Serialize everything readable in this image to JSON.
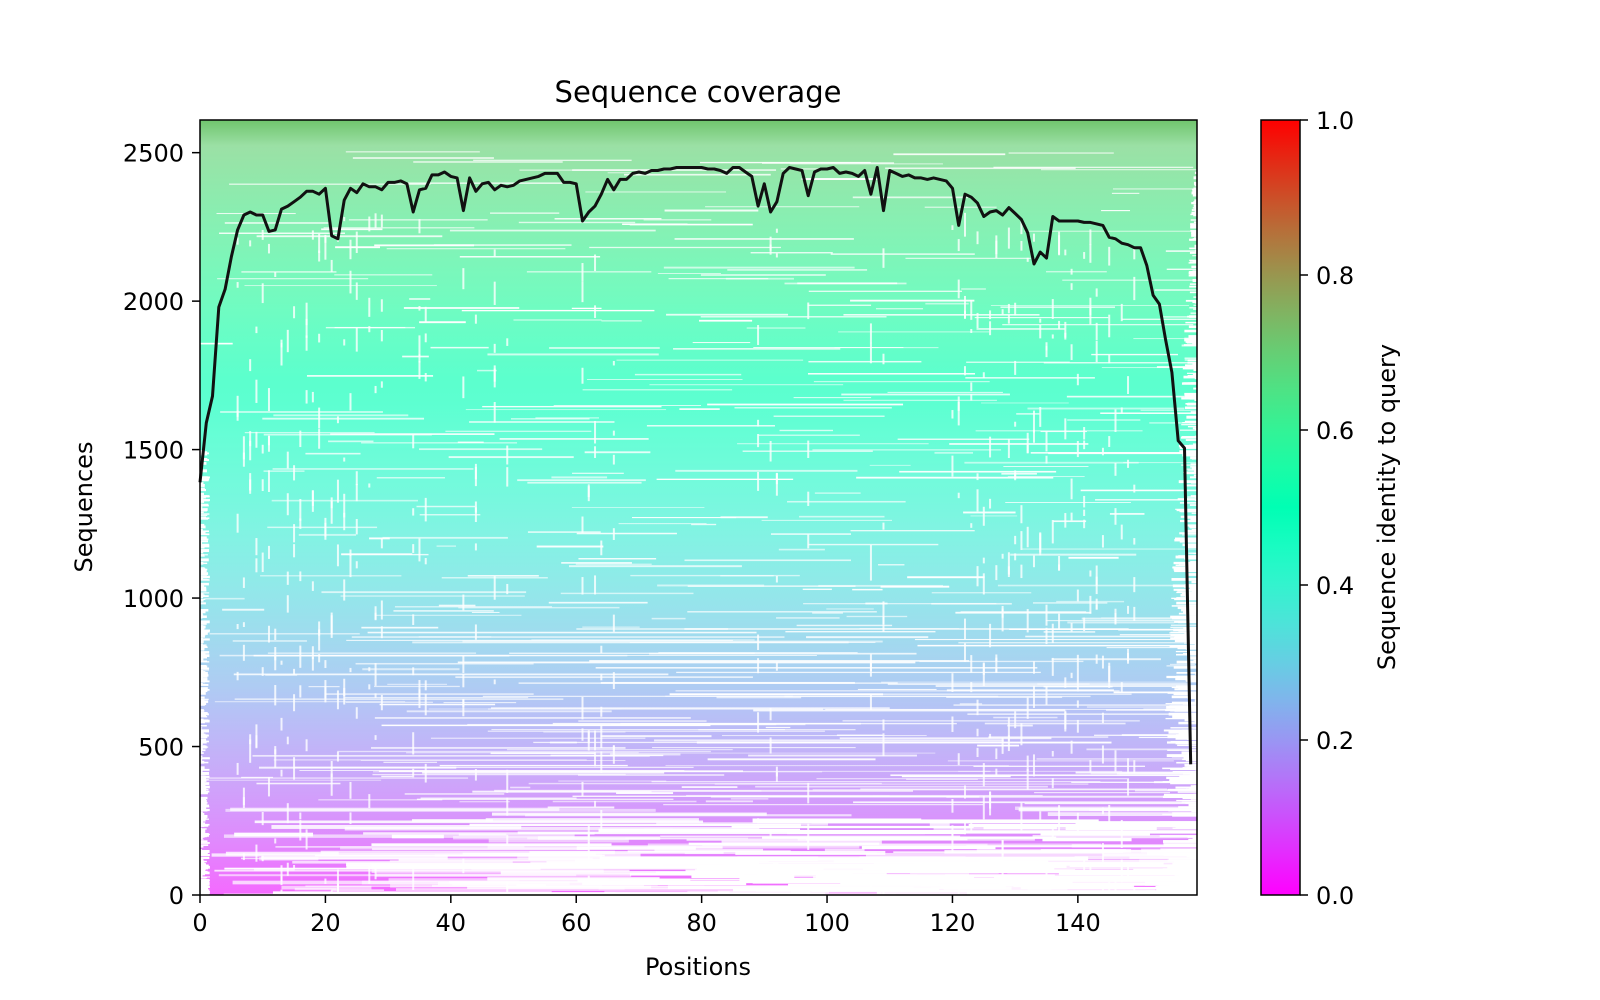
{
  "chart_data": {
    "type": "heatmap",
    "title": "Sequence coverage",
    "xlabel": "Positions",
    "ylabel": "Sequences",
    "xlim": [
      0,
      159
    ],
    "ylim": [
      0,
      2610
    ],
    "xticks": [
      0,
      20,
      40,
      60,
      80,
      100,
      120,
      140
    ],
    "yticks": [
      0,
      500,
      1000,
      1500,
      2000,
      2500
    ],
    "grid": false,
    "colorbar": {
      "label": "Sequence identity to query",
      "colormap": "rainbow",
      "range": [
        0.0,
        1.0
      ],
      "ticks": [
        "0.0",
        "0.2",
        "0.4",
        "0.6",
        "0.8",
        "1.0"
      ]
    },
    "heatmap": {
      "rows": 2610,
      "identity_top": 0.72,
      "identity_bottom": 0.03
    },
    "series": [
      {
        "type": "line",
        "color": "#000000",
        "x": [
          0,
          1,
          2,
          3,
          4,
          5,
          6,
          7,
          8,
          9,
          10,
          11,
          12,
          13,
          14,
          15,
          16,
          17,
          18,
          19,
          20,
          21,
          22,
          23,
          24,
          25,
          26,
          27,
          28,
          29,
          30,
          31,
          32,
          33,
          34,
          35,
          36,
          37,
          38,
          39,
          40,
          41,
          42,
          43,
          44,
          45,
          46,
          47,
          48,
          49,
          50,
          51,
          52,
          53,
          54,
          55,
          56,
          57,
          58,
          59,
          60,
          61,
          62,
          63,
          64,
          65,
          66,
          67,
          68,
          69,
          70,
          71,
          72,
          73,
          74,
          75,
          76,
          77,
          78,
          79,
          80,
          81,
          82,
          83,
          84,
          85,
          86,
          87,
          88,
          89,
          90,
          91,
          92,
          93,
          94,
          95,
          96,
          97,
          98,
          99,
          100,
          101,
          102,
          103,
          104,
          105,
          106,
          107,
          108,
          109,
          110,
          111,
          112,
          113,
          114,
          115,
          116,
          117,
          118,
          119,
          120,
          121,
          122,
          123,
          124,
          125,
          126,
          127,
          128,
          129,
          130,
          131,
          132,
          133,
          134,
          135,
          136,
          137,
          138,
          139,
          140,
          141,
          142,
          143,
          144,
          145,
          146,
          147,
          148,
          149,
          150,
          151,
          152,
          153,
          154,
          155,
          156,
          157,
          158
        ],
        "values": [
          1390,
          1590,
          1680,
          1980,
          2040,
          2150,
          2240,
          2290,
          2300,
          2290,
          2290,
          2235,
          2240,
          2310,
          2320,
          2335,
          2350,
          2370,
          2370,
          2360,
          2380,
          2220,
          2210,
          2340,
          2380,
          2365,
          2395,
          2385,
          2385,
          2375,
          2400,
          2400,
          2405,
          2395,
          2300,
          2375,
          2380,
          2425,
          2425,
          2435,
          2420,
          2415,
          2305,
          2415,
          2370,
          2395,
          2400,
          2375,
          2390,
          2385,
          2390,
          2405,
          2410,
          2415,
          2420,
          2430,
          2430,
          2430,
          2400,
          2400,
          2395,
          2270,
          2300,
          2320,
          2360,
          2410,
          2375,
          2410,
          2410,
          2430,
          2435,
          2430,
          2440,
          2440,
          2445,
          2445,
          2450,
          2450,
          2450,
          2450,
          2450,
          2445,
          2445,
          2440,
          2430,
          2450,
          2450,
          2435,
          2420,
          2320,
          2395,
          2300,
          2335,
          2430,
          2450,
          2445,
          2440,
          2355,
          2435,
          2445,
          2445,
          2450,
          2430,
          2435,
          2430,
          2420,
          2440,
          2360,
          2450,
          2305,
          2440,
          2430,
          2420,
          2425,
          2415,
          2415,
          2410,
          2415,
          2410,
          2405,
          2380,
          2255,
          2360,
          2350,
          2330,
          2285,
          2300,
          2305,
          2290,
          2315,
          2295,
          2275,
          2230,
          2125,
          2165,
          2145,
          2285,
          2270,
          2270,
          2270,
          2270,
          2265,
          2265,
          2260,
          2255,
          2215,
          2210,
          2195,
          2190,
          2180,
          2180,
          2120,
          2020,
          1990,
          1870,
          1760,
          1530,
          1505,
          440
        ]
      }
    ]
  }
}
